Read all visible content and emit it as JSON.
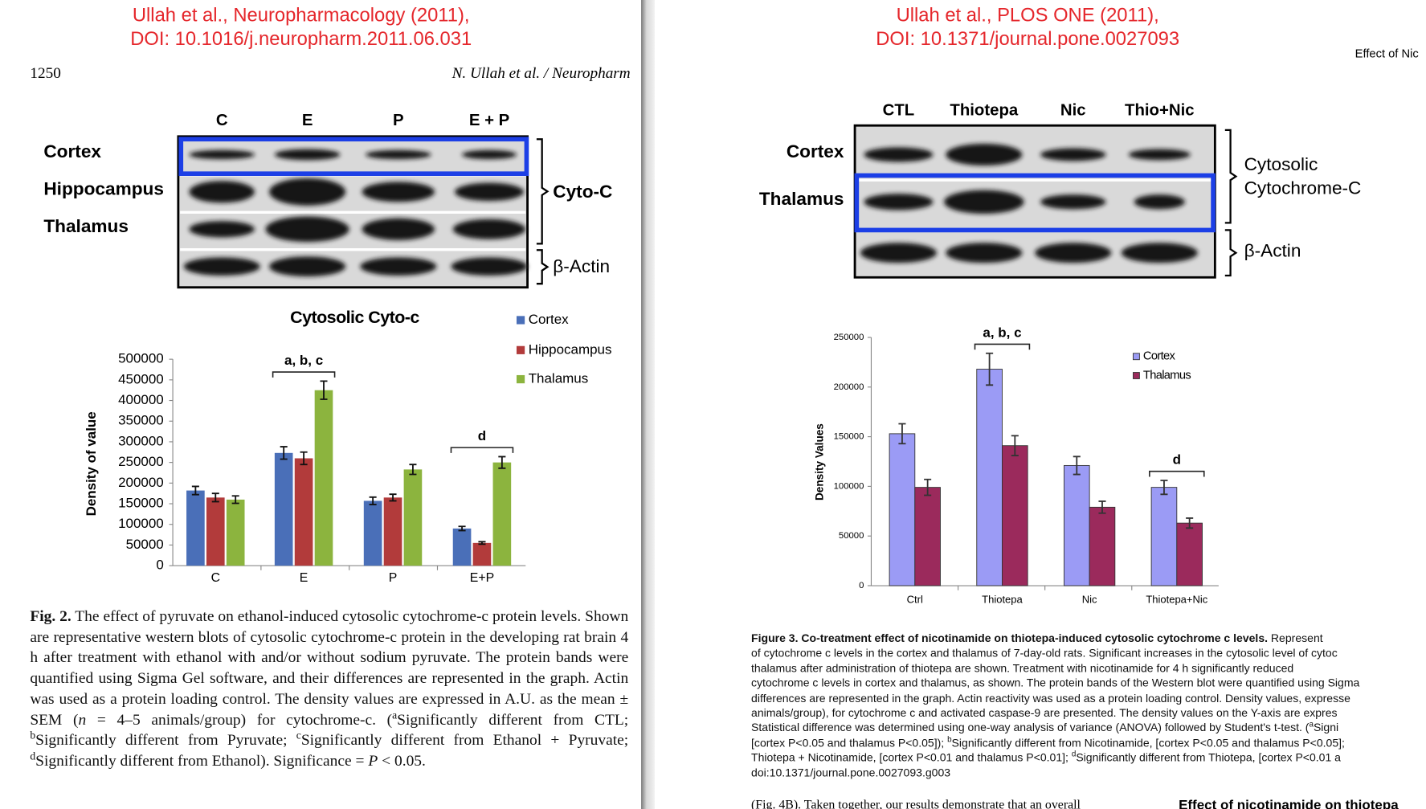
{
  "left": {
    "citation": [
      "Ullah et al., Neuropharmacology (2011),",
      "DOI: 10.1016/j.neuropharm.2011.06.031"
    ],
    "page_number": "1250",
    "running_header": "N. Ullah et al. / Neuropharm",
    "blot": {
      "lanes": [
        "C",
        "E",
        "P",
        "E + P"
      ],
      "rows": [
        "Cortex",
        "Hippocampus",
        "Thalamus"
      ],
      "labels": [
        "Cyto-C",
        "β-Actin"
      ]
    },
    "caption": {
      "runs": [
        {
          "bold": "Fig. 2."
        },
        " The effect of pyruvate on ethanol-induced cytosolic cytochrome-c protein levels. Shown are representative western blots of cytosolic cytochrome-c protein in the developing rat brain 4 h after treatment with ethanol with and/or without sodium pyruvate. The protein bands were quantified using Sigma Gel software, and their differences are represented in the graph. Actin was used as a protein loading control. The density values are expressed in A.U. as the mean ± SEM (",
        {
          "italic": "n"
        },
        " = 4–5 animals/group) for cytochrome-c. (",
        {
          "sup": "a"
        },
        "Significantly different from CTL; ",
        {
          "sup": "b"
        },
        "Significantly different from Pyruvate; ",
        {
          "sup": "c"
        },
        "Significantly different from Ethanol + Pyruvate; ",
        {
          "sup": "d"
        },
        "Significantly different from Ethanol). Significance = ",
        {
          "italic": "P"
        },
        " < 0.05."
      ]
    }
  },
  "right": {
    "citation": [
      "Ullah et al., PLOS ONE (2011),",
      "DOI: 10.1371/journal.pone.0027093"
    ],
    "running_header": "Effect of Nic",
    "blot": {
      "lanes": [
        "CTL",
        "Thiotepa",
        "Nic",
        "Thio+Nic"
      ],
      "rows": [
        "Cortex",
        "Thalamus"
      ],
      "labels": [
        "Cytosolic",
        "Cytochrome-C",
        "β-Actin"
      ]
    },
    "caption": {
      "lines": [
        [
          {
            "bold": "Figure 3. Co-treatment effect of nicotinamide on thiotepa-induced cytosolic cytochrome c levels."
          },
          " Represent"
        ],
        [
          "of cytochrome c levels in the cortex and thalamus of 7-day-old rats. Significant increases in the cytosolic level of cytoc"
        ],
        [
          "thalamus after administration of thiotepa are shown. Treatment with nicotinamide for 4 h significantly reduced"
        ],
        [
          "cytochrome c levels in cortex and thalamus, as shown. The protein bands of the Western blot were quantified using Sigma"
        ],
        [
          "differences are represented in the graph. Actin reactivity was used as a protein loading control. Density values, expresse"
        ],
        [
          "animals/group), for cytochrome c and activated caspase-9 are presented. The density values on the Y-axis are expres"
        ],
        [
          "Statistical difference was determined using one-way analysis of variance (ANOVA) followed by Student's t-test. (",
          {
            "sup": "a"
          },
          "Signi"
        ],
        [
          "[cortex P<0.05 and thalamus P<0.05]); ",
          {
            "sup": "b"
          },
          "Significantly different from Nicotinamide, [cortex P<0.05 and thalamus P<0.05];"
        ],
        [
          "Thiotepa + Nicotinamide, [cortex P<0.01 and thalamus P<0.01]; ",
          {
            "sup": "d"
          },
          "Significantly different from Thiotepa, [cortex P<0.01 a"
        ],
        [
          "doi:10.1371/journal.pone.0027093.g003"
        ]
      ]
    },
    "body_text": "(Fig. 4B). Taken together, our results demonstrate that an overall",
    "section_heading": "Effect of nicotinamide on thiotepa"
  },
  "chart_data": [
    {
      "type": "bar",
      "title": "Cytosolic Cyto-c",
      "y_label": "Density of value",
      "categories": [
        "C",
        "E",
        "P",
        "E+P"
      ],
      "series": [
        {
          "name": "Cortex",
          "color": "#4a6fb8",
          "values": [
            182000,
            273000,
            157000,
            90000
          ],
          "errors": [
            10000,
            15000,
            9000,
            5000
          ]
        },
        {
          "name": "Hippocampus",
          "color": "#b23b3b",
          "values": [
            165000,
            260000,
            165000,
            55000
          ],
          "errors": [
            10000,
            15000,
            8000,
            3000
          ]
        },
        {
          "name": "Thalamus",
          "color": "#8cb43e",
          "values": [
            160000,
            425000,
            233000,
            250000
          ],
          "errors": [
            9000,
            22000,
            12000,
            14000
          ]
        }
      ],
      "ylim": [
        0,
        500000
      ],
      "yticks": [
        0,
        50000,
        100000,
        150000,
        200000,
        250000,
        300000,
        350000,
        400000,
        450000,
        500000
      ],
      "annotations": [
        "a, b, c",
        "d"
      ]
    },
    {
      "type": "bar",
      "y_label": "Density Values",
      "categories": [
        "Ctrl",
        "Thiotepa",
        "Nic",
        "Thiotepa+Nic"
      ],
      "series": [
        {
          "name": "Cortex",
          "color": "#9b9bf5",
          "values": [
            153000,
            218000,
            121000,
            99000
          ],
          "errors": [
            10000,
            16000,
            9000,
            7000
          ]
        },
        {
          "name": "Thalamus",
          "color": "#9b2a5c",
          "values": [
            99000,
            141000,
            79000,
            63000
          ],
          "errors": [
            8000,
            10000,
            6000,
            5000
          ]
        }
      ],
      "ylim": [
        0,
        250000
      ],
      "yticks": [
        0,
        50000,
        100000,
        150000,
        200000,
        250000
      ],
      "annotations": [
        "a, b, c",
        "d"
      ]
    }
  ]
}
